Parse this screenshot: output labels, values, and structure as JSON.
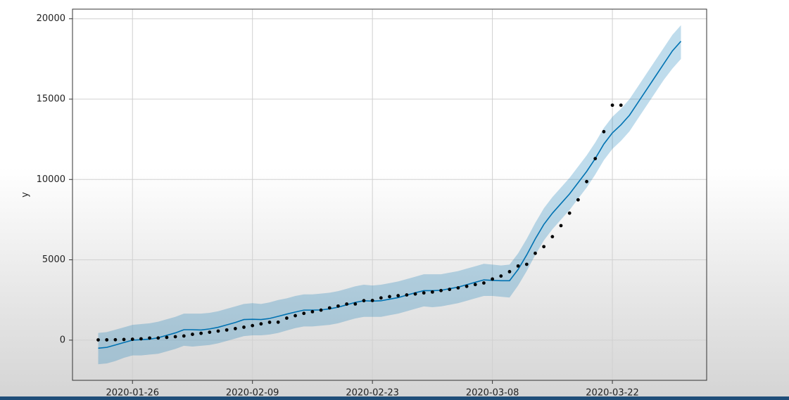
{
  "chart_data": {
    "type": "forecast",
    "ylabel": "y",
    "xlim": [
      "2020-01-19",
      "2020-04-02"
    ],
    "xticks": [
      "2020-01-26",
      "2020-02-09",
      "2020-02-23",
      "2020-03-08",
      "2020-03-22"
    ],
    "ylim": [
      -2500,
      20600
    ],
    "yticks": [
      0,
      5000,
      10000,
      15000,
      20000
    ],
    "grid": true,
    "x": [
      "2020-01-22",
      "2020-01-23",
      "2020-01-24",
      "2020-01-25",
      "2020-01-26",
      "2020-01-27",
      "2020-01-28",
      "2020-01-29",
      "2020-01-30",
      "2020-01-31",
      "2020-02-01",
      "2020-02-02",
      "2020-02-03",
      "2020-02-04",
      "2020-02-05",
      "2020-02-06",
      "2020-02-07",
      "2020-02-08",
      "2020-02-09",
      "2020-02-10",
      "2020-02-11",
      "2020-02-12",
      "2020-02-13",
      "2020-02-14",
      "2020-02-15",
      "2020-02-16",
      "2020-02-17",
      "2020-02-18",
      "2020-02-19",
      "2020-02-20",
      "2020-02-21",
      "2020-02-22",
      "2020-02-23",
      "2020-02-24",
      "2020-02-25",
      "2020-02-26",
      "2020-02-27",
      "2020-02-28",
      "2020-02-29",
      "2020-03-01",
      "2020-03-02",
      "2020-03-03",
      "2020-03-04",
      "2020-03-05",
      "2020-03-06",
      "2020-03-07",
      "2020-03-08",
      "2020-03-09",
      "2020-03-10",
      "2020-03-11",
      "2020-03-12",
      "2020-03-13",
      "2020-03-14",
      "2020-03-15",
      "2020-03-16",
      "2020-03-17",
      "2020-03-18",
      "2020-03-19",
      "2020-03-20",
      "2020-03-21",
      "2020-03-22",
      "2020-03-23",
      "2020-03-24",
      "2020-03-25",
      "2020-03-26",
      "2020-03-27",
      "2020-03-28",
      "2020-03-29",
      "2020-03-30"
    ],
    "series": [
      {
        "color": "#000000",
        "values": [
          17,
          18,
          26,
          42,
          56,
          82,
          131,
          133,
          171,
          213,
          259,
          362,
          426,
          492,
          564,
          634,
          719,
          806,
          906,
          1013,
          1113,
          1118,
          1371,
          1523,
          1666,
          1770,
          1868,
          2007,
          2122,
          2247,
          2251,
          2458,
          2469,
          2629,
          2708,
          2770,
          2814,
          2872,
          2941,
          2996,
          3085,
          3160,
          3254,
          3348,
          3460,
          3558,
          3802,
          3988,
          4262,
          4615,
          4720,
          5404,
          5819,
          6440,
          7126,
          7905,
          8733,
          9867,
          11299,
          12973,
          14623,
          14623,
          null,
          null,
          null,
          null,
          null,
          null,
          null
        ]
      },
      {
        "color": "#0072B2",
        "band_color": "#0072B2",
        "values": [
          -500,
          -450,
          -300,
          -150,
          0,
          30,
          60,
          150,
          300,
          450,
          650,
          650,
          630,
          700,
          800,
          950,
          1100,
          1280,
          1300,
          1280,
          1350,
          1480,
          1620,
          1750,
          1870,
          1870,
          1880,
          1950,
          2050,
          2200,
          2350,
          2450,
          2430,
          2450,
          2550,
          2650,
          2800,
          2950,
          3080,
          3080,
          3100,
          3200,
          3300,
          3450,
          3600,
          3750,
          3720,
          3700,
          3700,
          4400,
          5300,
          6300,
          7200,
          7900,
          8500,
          9100,
          9800,
          10500,
          11300,
          12200,
          12900,
          13400,
          14000,
          14800,
          15600,
          16400,
          17200,
          18000,
          18600
        ],
        "lower": [
          -1500,
          -1450,
          -1300,
          -1100,
          -950,
          -950,
          -900,
          -850,
          -700,
          -550,
          -350,
          -400,
          -350,
          -300,
          -200,
          -50,
          100,
          250,
          300,
          300,
          350,
          450,
          600,
          750,
          850,
          850,
          900,
          950,
          1050,
          1200,
          1350,
          1450,
          1450,
          1450,
          1550,
          1650,
          1800,
          1950,
          2100,
          2050,
          2100,
          2200,
          2300,
          2450,
          2600,
          2750,
          2750,
          2700,
          2650,
          3400,
          4300,
          5300,
          6200,
          6900,
          7500,
          8100,
          8800,
          9500,
          10300,
          11200,
          11900,
          12400,
          13000,
          13800,
          14600,
          15400,
          16200,
          16900,
          17500
        ],
        "upper": [
          450,
          500,
          650,
          800,
          950,
          1000,
          1050,
          1150,
          1300,
          1450,
          1650,
          1650,
          1650,
          1700,
          1800,
          1950,
          2100,
          2250,
          2300,
          2250,
          2350,
          2500,
          2600,
          2750,
          2850,
          2850,
          2900,
          2950,
          3050,
          3200,
          3350,
          3450,
          3400,
          3450,
          3550,
          3650,
          3800,
          3950,
          4100,
          4100,
          4100,
          4200,
          4300,
          4450,
          4600,
          4750,
          4700,
          4650,
          4700,
          5400,
          6300,
          7300,
          8200,
          8900,
          9500,
          10100,
          10800,
          11500,
          12300,
          13200,
          13900,
          14400,
          15000,
          15800,
          16600,
          17400,
          18200,
          19000,
          19600
        ]
      }
    ]
  }
}
